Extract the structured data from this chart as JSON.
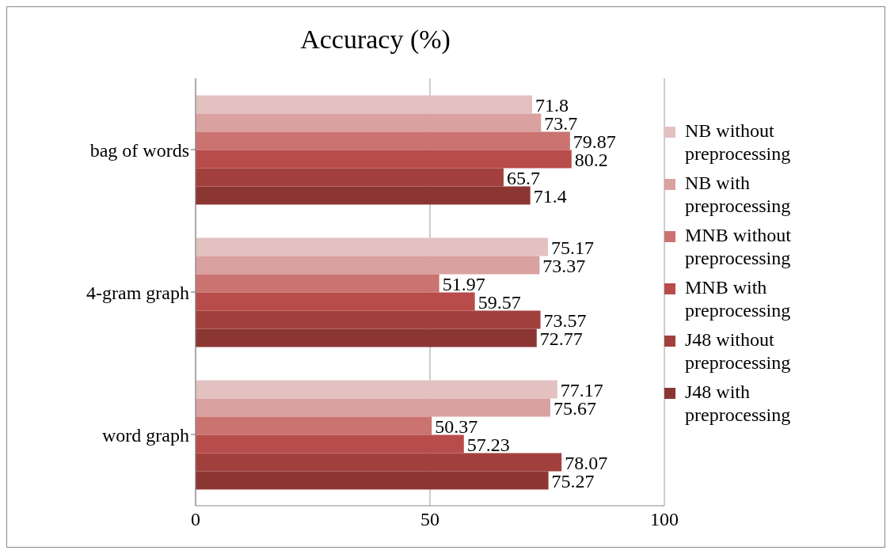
{
  "chart_data": {
    "type": "bar",
    "orientation": "horizontal",
    "title": "Accuracy (%)",
    "categories": [
      "bag of words",
      "4-gram graph",
      "word graph"
    ],
    "series": [
      {
        "name": "NB without preprocessing",
        "color": "#e3c1c1",
        "values": [
          71.8,
          75.17,
          77.17
        ]
      },
      {
        "name": "NB with preprocessing",
        "color": "#d9a1a0",
        "values": [
          73.7,
          73.37,
          75.67
        ]
      },
      {
        "name": "MNB without preprocessing",
        "color": "#cb7371",
        "values": [
          79.87,
          51.97,
          50.37
        ]
      },
      {
        "name": "MNB with preprocessing",
        "color": "#b84c4a",
        "values": [
          80.2,
          59.57,
          57.23
        ]
      },
      {
        "name": "J48 without preprocessing",
        "color": "#a2403e",
        "values": [
          65.7,
          73.57,
          78.07
        ]
      },
      {
        "name": "J48 with preprocessing",
        "color": "#8c3634",
        "values": [
          71.4,
          72.77,
          75.27
        ]
      }
    ],
    "xlim": [
      0,
      100
    ],
    "xticks": [
      0,
      50,
      100
    ],
    "grid": "x",
    "legend": "right",
    "data_labels": true
  }
}
